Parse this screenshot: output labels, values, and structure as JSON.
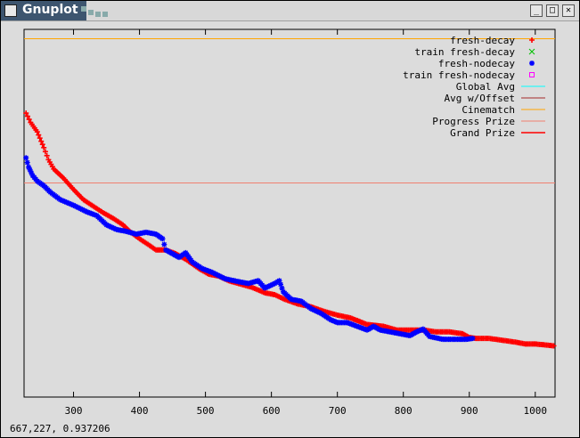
{
  "window": {
    "title": "Gnuplot"
  },
  "controls": {
    "minimize": "_",
    "maximize": "□",
    "close": "✕"
  },
  "status": {
    "coords": "667,227,  0.937206"
  },
  "chart_data": {
    "type": "scatter",
    "x_ticks": [
      "300",
      "400",
      "500",
      "600",
      "700",
      "800",
      "900",
      "1000"
    ],
    "xlim": [
      225,
      1030
    ],
    "ylim": [
      0.922,
      0.9615
    ],
    "grid": false,
    "legend_position": "top-right",
    "series": [
      {
        "name": "fresh-decay",
        "marker": "plus",
        "color": "#ff0000",
        "points": [
          [
            228,
            0.9525
          ],
          [
            235,
            0.9515
          ],
          [
            245,
            0.9505
          ],
          [
            255,
            0.9488
          ],
          [
            262,
            0.9475
          ],
          [
            270,
            0.9465
          ],
          [
            285,
            0.9455
          ],
          [
            300,
            0.9443
          ],
          [
            315,
            0.9432
          ],
          [
            330,
            0.9425
          ],
          [
            345,
            0.9418
          ],
          [
            360,
            0.9412
          ],
          [
            375,
            0.9405
          ],
          [
            385,
            0.9398
          ],
          [
            400,
            0.939
          ],
          [
            415,
            0.9383
          ],
          [
            425,
            0.9378
          ],
          [
            440,
            0.9378
          ],
          [
            455,
            0.9374
          ],
          [
            470,
            0.9368
          ],
          [
            490,
            0.9358
          ],
          [
            505,
            0.9352
          ],
          [
            520,
            0.935
          ],
          [
            535,
            0.9345
          ],
          [
            550,
            0.9342
          ],
          [
            570,
            0.9338
          ],
          [
            590,
            0.9332
          ],
          [
            605,
            0.933
          ],
          [
            620,
            0.9325
          ],
          [
            640,
            0.932
          ],
          [
            660,
            0.9317
          ],
          [
            680,
            0.9312
          ],
          [
            700,
            0.9308
          ],
          [
            720,
            0.9305
          ],
          [
            745,
            0.9298
          ],
          [
            770,
            0.9296
          ],
          [
            790,
            0.9292
          ],
          [
            810,
            0.9292
          ],
          [
            830,
            0.9292
          ],
          [
            850,
            0.929
          ],
          [
            870,
            0.929
          ],
          [
            890,
            0.9288
          ],
          [
            900,
            0.9284
          ],
          [
            910,
            0.9283
          ],
          [
            930,
            0.9283
          ],
          [
            950,
            0.9281
          ],
          [
            970,
            0.9279
          ],
          [
            985,
            0.9277
          ],
          [
            1000,
            0.9277
          ],
          [
            1015,
            0.9276
          ],
          [
            1028,
            0.9275
          ]
        ]
      },
      {
        "name": "train fresh-decay",
        "marker": "cross",
        "color": "#00c000",
        "points": []
      },
      {
        "name": "fresh-nodecay",
        "marker": "star",
        "color": "#0000ff",
        "points": [
          [
            228,
            0.9477
          ],
          [
            232,
            0.9467
          ],
          [
            238,
            0.9458
          ],
          [
            245,
            0.9452
          ],
          [
            255,
            0.9447
          ],
          [
            265,
            0.944
          ],
          [
            280,
            0.9432
          ],
          [
            300,
            0.9426
          ],
          [
            320,
            0.9419
          ],
          [
            335,
            0.9415
          ],
          [
            350,
            0.9405
          ],
          [
            365,
            0.94
          ],
          [
            380,
            0.9398
          ],
          [
            395,
            0.9395
          ],
          [
            410,
            0.9397
          ],
          [
            425,
            0.9395
          ],
          [
            435,
            0.939
          ],
          [
            440,
            0.9378
          ],
          [
            450,
            0.9374
          ],
          [
            460,
            0.937
          ],
          [
            470,
            0.9375
          ],
          [
            480,
            0.9365
          ],
          [
            495,
            0.9358
          ],
          [
            510,
            0.9354
          ],
          [
            530,
            0.9347
          ],
          [
            550,
            0.9344
          ],
          [
            565,
            0.9342
          ],
          [
            580,
            0.9345
          ],
          [
            590,
            0.9337
          ],
          [
            605,
            0.9342
          ],
          [
            612,
            0.9345
          ],
          [
            618,
            0.9333
          ],
          [
            630,
            0.9325
          ],
          [
            645,
            0.9323
          ],
          [
            660,
            0.9315
          ],
          [
            675,
            0.931
          ],
          [
            690,
            0.9303
          ],
          [
            700,
            0.93
          ],
          [
            715,
            0.93
          ],
          [
            730,
            0.9296
          ],
          [
            745,
            0.9292
          ],
          [
            755,
            0.9296
          ],
          [
            765,
            0.9292
          ],
          [
            780,
            0.929
          ],
          [
            795,
            0.9288
          ],
          [
            810,
            0.9286
          ],
          [
            820,
            0.929
          ],
          [
            830,
            0.9293
          ],
          [
            840,
            0.9285
          ],
          [
            860,
            0.9282
          ],
          [
            880,
            0.9282
          ],
          [
            895,
            0.9282
          ],
          [
            905,
            0.9283
          ]
        ]
      },
      {
        "name": "train fresh-nodecay",
        "marker": "square",
        "color": "#ff00ff",
        "points": []
      }
    ],
    "reference_lines": [
      {
        "name": "Global Avg",
        "color": "#00ffff",
        "y": null
      },
      {
        "name": "Avg w/Offset",
        "color": "#a52a2a",
        "y": null
      },
      {
        "name": "Cinematch",
        "color": "#ffa500",
        "y": 0.9605
      },
      {
        "name": "Progress Prize",
        "color": "#f08070",
        "y": 0.945
      },
      {
        "name": "Grand Prize",
        "color": "#ff0000",
        "y": null
      }
    ]
  }
}
